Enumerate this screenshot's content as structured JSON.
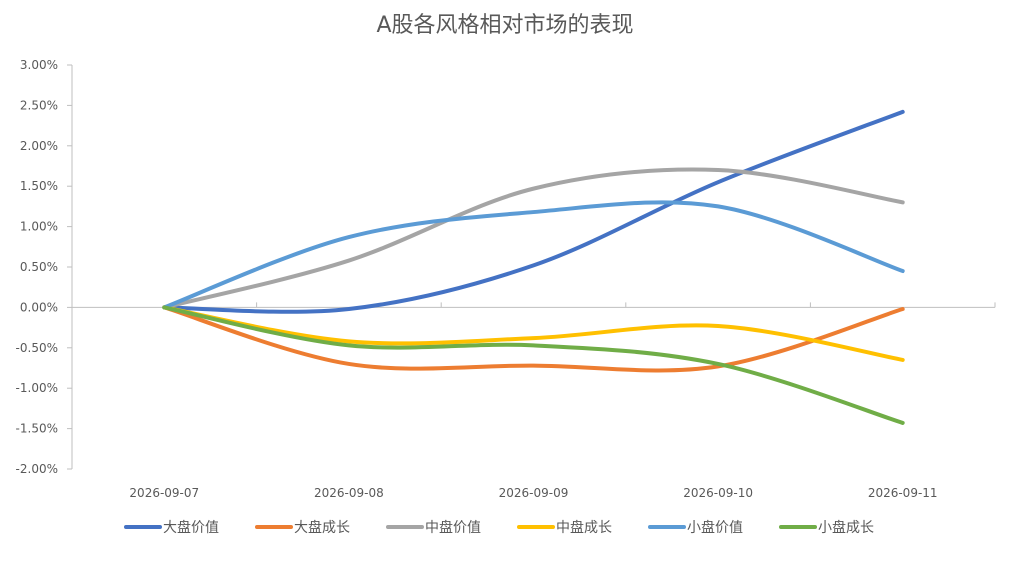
{
  "chart_data": {
    "type": "line",
    "title": "A股各风格相对市场的表现",
    "xlabel": "",
    "ylabel": "",
    "categories": [
      "2026-09-07",
      "2026-09-08",
      "2026-09-09",
      "2026-09-10",
      "2026-09-11"
    ],
    "ylim": [
      -0.02,
      0.03
    ],
    "yticks": [
      "3.00%",
      "2.50%",
      "2.00%",
      "1.50%",
      "1.00%",
      "0.50%",
      "0.00%",
      "-0.50%",
      "-1.00%",
      "-1.50%",
      "-2.00%"
    ],
    "grid": false,
    "legend_position": "bottom",
    "series": [
      {
        "name": "大盘价值",
        "color": "#4472C4",
        "values": [
          0.0,
          -0.0002,
          0.0052,
          0.0155,
          0.0242
        ]
      },
      {
        "name": "大盘成长",
        "color": "#ED7D31",
        "values": [
          0.0,
          -0.007,
          -0.0072,
          -0.0073,
          -0.0002
        ]
      },
      {
        "name": "中盘价值",
        "color": "#A5A5A5",
        "values": [
          0.0,
          0.0058,
          0.0147,
          0.017,
          0.013
        ]
      },
      {
        "name": "中盘成长",
        "color": "#FFC000",
        "values": [
          0.0,
          -0.0042,
          -0.0038,
          -0.0023,
          -0.0065
        ]
      },
      {
        "name": "小盘价值",
        "color": "#5B9BD5",
        "values": [
          0.0,
          0.0087,
          0.0118,
          0.0125,
          0.0045
        ]
      },
      {
        "name": "小盘成长",
        "color": "#70AD47",
        "values": [
          0.0,
          -0.0047,
          -0.0047,
          -0.007,
          -0.0143
        ]
      }
    ]
  }
}
